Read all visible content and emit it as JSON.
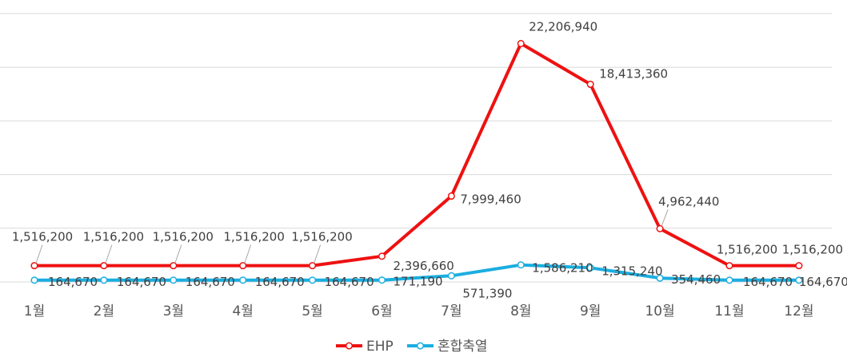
{
  "chart_data": {
    "type": "line",
    "categories": [
      "1월",
      "2월",
      "3월",
      "4월",
      "5월",
      "6월",
      "7월",
      "8월",
      "9월",
      "10월",
      "11월",
      "12월"
    ],
    "series": [
      {
        "name": "EHP",
        "color": "#ee1111",
        "values": [
          1516200,
          1516200,
          1516200,
          1516200,
          1516200,
          2396660,
          7999460,
          22206940,
          18413360,
          4962440,
          1516200,
          1516200
        ],
        "labels": [
          "1,516,200",
          "1,516,200",
          "1,516,200",
          "1,516,200",
          "1,516,200",
          "2,396,660",
          "7,999,460",
          "22,206,940",
          "18,413,360",
          "4,962,440",
          "1,516,200",
          "1,516,200"
        ]
      },
      {
        "name": "혼합축열",
        "color": "#1aaee0",
        "values": [
          164670,
          164670,
          164670,
          164670,
          164670,
          171190,
          571390,
          1586210,
          1315240,
          354460,
          164670,
          164670
        ],
        "labels": [
          "164,670",
          "164,670",
          "164,670",
          "164,670",
          "164,670",
          "171,190",
          "571,390",
          "1,586,210",
          "1,315,240",
          "354,460",
          "164,670",
          "164,670"
        ]
      }
    ],
    "ylim": [
      0,
      25000000
    ],
    "grid": true,
    "legend": "bottom"
  }
}
